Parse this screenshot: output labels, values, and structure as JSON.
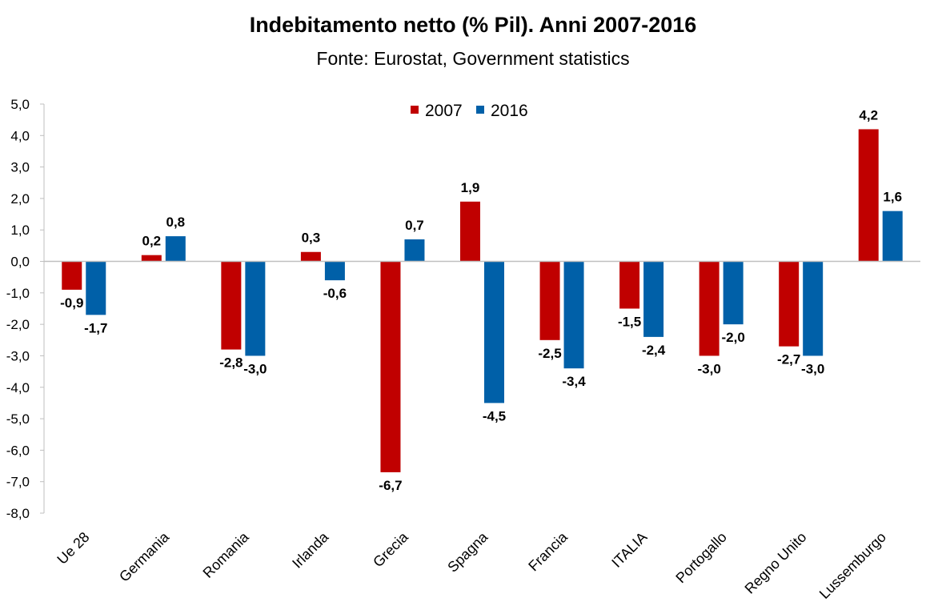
{
  "chart_data": {
    "type": "bar",
    "title": "Indebitamento netto (% Pil). Anni 2007-2016",
    "subtitle": "Fonte: Eurostat, Government statistics",
    "categories": [
      "Ue 28",
      "Germania",
      "Romania",
      "Irlanda",
      "Grecia",
      "Spagna",
      "Francia",
      "ITALIA",
      "Portogallo",
      "Regno Unito",
      "Lussemburgo"
    ],
    "series": [
      {
        "name": "2007",
        "color": "#C00000",
        "values": [
          -0.9,
          0.2,
          -2.8,
          0.3,
          -6.7,
          1.9,
          -2.5,
          -1.5,
          -3.0,
          -2.7,
          4.2
        ],
        "labels": [
          "-0,9",
          "0,2",
          "-2,8",
          "0,3",
          "-6,7",
          "1,9",
          "-2,5",
          "-1,5",
          "-3,0",
          "-2,7",
          "4,2"
        ]
      },
      {
        "name": "2016",
        "color": "#0060A8",
        "values": [
          -1.7,
          0.8,
          -3.0,
          -0.6,
          0.7,
          -4.5,
          -3.4,
          -2.4,
          -2.0,
          -3.0,
          1.6
        ],
        "labels": [
          "-1,7",
          "0,8",
          "-3,0",
          "-0,6",
          "0,7",
          "-4,5",
          "-3,4",
          "-2,4",
          "-2,0",
          "-3,0",
          "1,6"
        ]
      }
    ],
    "ylim": [
      -8,
      5
    ],
    "yticks": [
      5,
      4,
      3,
      2,
      1,
      0,
      -1,
      -2,
      -3,
      -4,
      -5,
      -6,
      -7,
      -8
    ],
    "ytick_labels": [
      "5,0",
      "4,0",
      "3,0",
      "2,0",
      "1,0",
      "0,0",
      "-1,0",
      "-2,0",
      "-3,0",
      "-4,0",
      "-5,0",
      "-6,0",
      "-7,0",
      "-8,0"
    ],
    "xlabel": "",
    "ylabel": "",
    "grid": false,
    "legend_position": "top-center"
  }
}
